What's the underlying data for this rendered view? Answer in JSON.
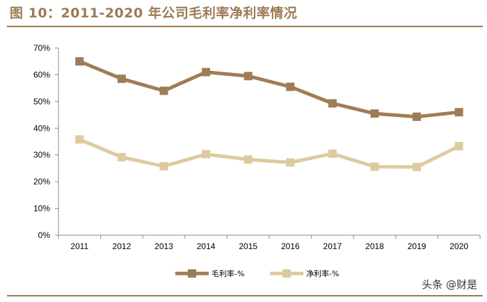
{
  "page": {
    "title": "图 10：2011-2020 年公司毛利率净利率情况",
    "watermark": "头条 @财是"
  },
  "chart_data": {
    "type": "line",
    "title": "",
    "xlabel": "",
    "ylabel": "",
    "categories": [
      "2011",
      "2012",
      "2013",
      "2014",
      "2015",
      "2016",
      "2017",
      "2018",
      "2019",
      "2020"
    ],
    "ylim": [
      0,
      70
    ],
    "yticks": [
      "0%",
      "10%",
      "20%",
      "30%",
      "40%",
      "50%",
      "60%",
      "70%"
    ],
    "grid": false,
    "legend_position": "bottom",
    "series": [
      {
        "name": "毛利率-%",
        "color": "#a07c55",
        "values": [
          65.0,
          58.5,
          54.0,
          61.0,
          59.5,
          55.5,
          49.3,
          45.5,
          44.3,
          46.0
        ]
      },
      {
        "name": "净利率-%",
        "color": "#ddcb9f",
        "values": [
          35.8,
          29.2,
          25.8,
          30.3,
          28.3,
          27.2,
          30.5,
          25.6,
          25.5,
          33.3
        ]
      }
    ]
  }
}
